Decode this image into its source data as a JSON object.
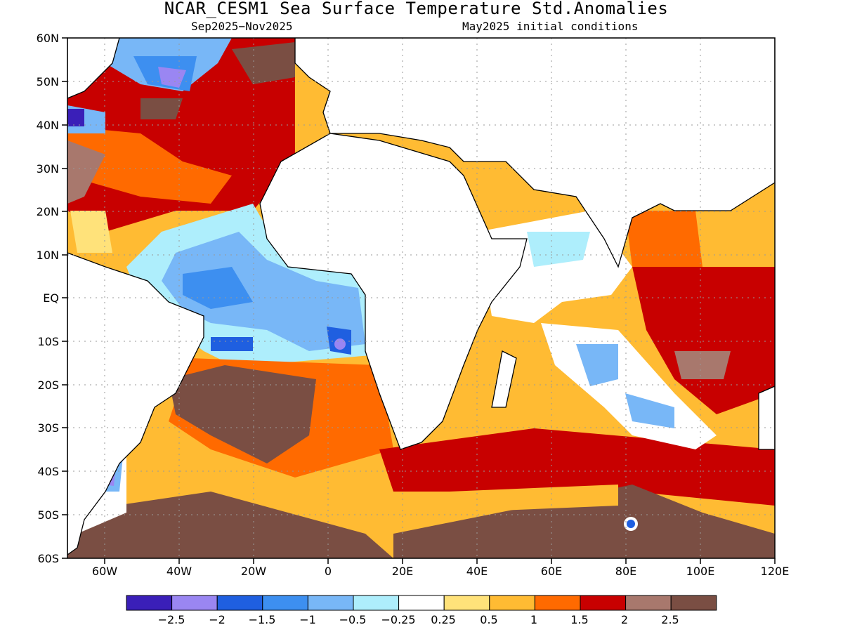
{
  "header": {
    "title": "NCAR_CESM1 Sea Surface Temperature Std.Anomalies",
    "period": "Sep2025−Nov2025",
    "init": "May2025 initial conditions"
  },
  "axes": {
    "lat_labels": [
      "60N",
      "50N",
      "40N",
      "30N",
      "20N",
      "10N",
      "EQ",
      "10S",
      "20S",
      "30S",
      "40S",
      "50S",
      "60S"
    ],
    "lon_labels": [
      "60W",
      "40W",
      "20W",
      "0",
      "20E",
      "40E",
      "60E",
      "80E",
      "100E",
      "120E"
    ],
    "lon_range": [
      -70,
      120
    ],
    "lat_range": [
      -60,
      60
    ]
  },
  "colorbar": {
    "labels": [
      "−2.5",
      "−2",
      "−1.5",
      "−1",
      "−0.5",
      "−0.25",
      "0.25",
      "0.5",
      "1",
      "1.5",
      "2",
      "2.5"
    ],
    "colors": [
      "#3a1fb8",
      "#9a86f2",
      "#1f5fe0",
      "#3d8ff0",
      "#78b7f7",
      "#aeeefc",
      "#ffffff",
      "#ffe27a",
      "#ffbb33",
      "#ff6a00",
      "#c80000",
      "#a8786d",
      "#7a4e43"
    ]
  }
}
